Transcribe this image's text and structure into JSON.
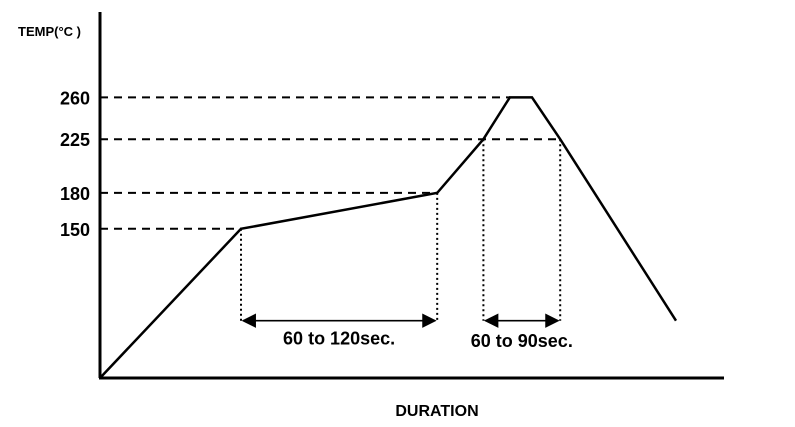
{
  "chart_data": {
    "type": "line",
    "title": "",
    "xlabel": "DURATION",
    "ylabel": "TEMP(°C )",
    "y_ticks": [
      {
        "value": 260,
        "label": "260"
      },
      {
        "value": 225,
        "label": "225"
      },
      {
        "value": 180,
        "label": "180"
      },
      {
        "value": 150,
        "label": "150"
      }
    ],
    "ylim": [
      25,
      280
    ],
    "xlim": [
      0,
      100
    ],
    "grid": false,
    "series": [
      {
        "x": [
          0,
          23.5,
          56.2,
          63.9,
          68.3,
          72.0,
          76.7,
          96.0
        ],
        "y": [
          25,
          150,
          180,
          225,
          260,
          260,
          225,
          73
        ]
      }
    ],
    "reference_lines": [
      {
        "y": 260,
        "x_end": 68.3
      },
      {
        "y": 225,
        "x_end": 76.7
      },
      {
        "y": 180,
        "x_end": 56.2
      },
      {
        "y": 150,
        "x_end": 23.5
      }
    ],
    "annotations": [
      {
        "label": "60 to 120sec.",
        "x_start": 23.5,
        "x_end": 56.2,
        "start_y": 150,
        "end_y": 180,
        "arrow_y": 73,
        "label_y": 59
      },
      {
        "label": "60 to 90sec.",
        "x_start": 63.9,
        "x_end": 76.7,
        "start_y": 225,
        "end_y": 225,
        "arrow_y": 73,
        "label_y": 57
      }
    ],
    "colors": {
      "line": "#000000",
      "text": "#000000",
      "background": "#ffffff"
    }
  }
}
